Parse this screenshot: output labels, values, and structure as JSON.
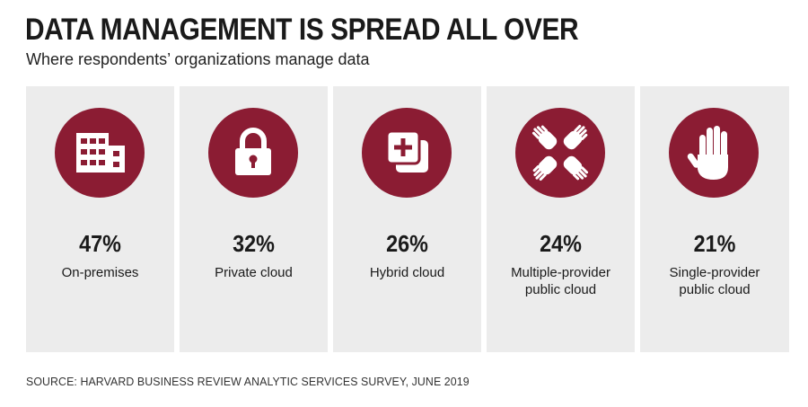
{
  "title": "DATA MANAGEMENT IS SPREAD ALL OVER",
  "subtitle": "Where respondents’ organizations manage data",
  "source": "SOURCE: HARVARD BUSINESS REVIEW ANALYTIC SERVICES SURVEY, JUNE 2019",
  "colors": {
    "accent": "#8b1c33",
    "card": "#ececec"
  },
  "chart_data": {
    "type": "table",
    "title": "DATA MANAGEMENT IS SPREAD ALL OVER",
    "subtitle": "Where respondents’ organizations manage data",
    "unit": "%",
    "categories": [
      "On-premises",
      "Private cloud",
      "Hybrid cloud",
      "Multiple-provider public cloud",
      "Single-provider public cloud"
    ],
    "items": [
      {
        "value": 47,
        "value_label": "47%",
        "label": "On-premises",
        "icon": "building-icon"
      },
      {
        "value": 32,
        "value_label": "32%",
        "label": "Private cloud",
        "icon": "padlock-icon"
      },
      {
        "value": 26,
        "value_label": "26%",
        "label": "Hybrid cloud",
        "icon": "hybrid-plus-icon"
      },
      {
        "value": 24,
        "value_label": "24%",
        "label": "Multiple-provider\npublic cloud",
        "icon": "hands-icon"
      },
      {
        "value": 21,
        "value_label": "21%",
        "label": "Single-provider\npublic cloud",
        "icon": "hand-icon"
      }
    ]
  }
}
